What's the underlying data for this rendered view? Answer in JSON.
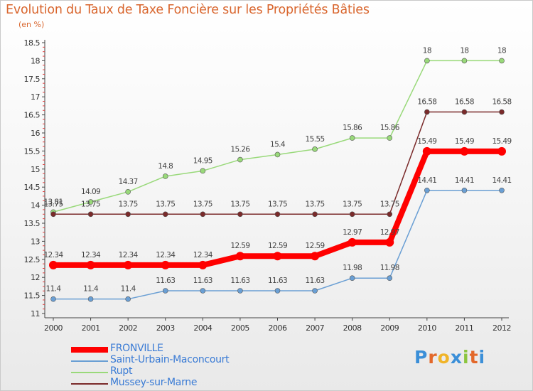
{
  "title": "Evolution du Taux de Taxe Foncière sur les Propriétés Bâties",
  "subtitle": "(en %)",
  "brand": {
    "letters": [
      "P",
      "r",
      "o",
      "x",
      "i",
      "t",
      "i"
    ],
    "colors": [
      "#3b8fd8",
      "#e3682a",
      "#f0b428",
      "#3b8fd8",
      "#8bc53f",
      "#e3682a",
      "#3b8fd8"
    ]
  },
  "chart_data": {
    "type": "line",
    "title": "Evolution du Taux de Taxe Foncière sur les Propriétés Bâties",
    "ylabel": "(en %)",
    "xlabel": "",
    "x": [
      "2000",
      "2001",
      "2002",
      "2003",
      "2004",
      "2005",
      "2006",
      "2007",
      "2008",
      "2009",
      "2010",
      "2011",
      "2012"
    ],
    "ylim": [
      11,
      18.5
    ],
    "yticks": [
      "11",
      "11.5",
      "12",
      "12.5",
      "13",
      "13.5",
      "14",
      "14.5",
      "15",
      "15.5",
      "16",
      "16.5",
      "17",
      "17.5",
      "18",
      "18.5"
    ],
    "grid": false,
    "legend_position": "bottom-left",
    "series": [
      {
        "name": "FRONVILLE",
        "color": "#ff0000",
        "values": [
          12.34,
          12.34,
          12.34,
          12.34,
          12.34,
          12.59,
          12.59,
          12.59,
          12.97,
          12.97,
          15.49,
          15.49,
          15.49
        ],
        "labels": [
          "12.34",
          "12.34",
          "12.34",
          "12.34",
          "12.34",
          "12.59",
          "12.59",
          "12.59",
          "12.97",
          "12.97",
          "15.49",
          "15.49",
          "15.49"
        ]
      },
      {
        "name": "Saint-Urbain-Maconcourt",
        "color": "#6a9fd4",
        "values": [
          11.4,
          11.4,
          11.4,
          11.63,
          11.63,
          11.63,
          11.63,
          11.63,
          11.98,
          11.98,
          14.41,
          14.41,
          14.41
        ],
        "labels": [
          "11.4",
          "11.4",
          "11.4",
          "11.63",
          "11.63",
          "11.63",
          "11.63",
          "11.63",
          "11.98",
          "11.98",
          "14.41",
          "14.41",
          "14.41"
        ]
      },
      {
        "name": "Rupt",
        "color": "#99d97a",
        "values": [
          13.81,
          14.09,
          14.37,
          14.8,
          14.95,
          15.26,
          15.4,
          15.55,
          15.86,
          15.86,
          18,
          18,
          18
        ],
        "labels": [
          "13.81",
          "14.09",
          "14.37",
          "14.8",
          "14.95",
          "15.26",
          "15.4",
          "15.55",
          "15.86",
          "15.86",
          "18",
          "18",
          "18"
        ]
      },
      {
        "name": "Mussey-sur-Marne",
        "color": "#7a2a2a",
        "values": [
          13.75,
          13.75,
          13.75,
          13.75,
          13.75,
          13.75,
          13.75,
          13.75,
          13.75,
          13.75,
          16.58,
          16.58,
          16.58
        ],
        "labels": [
          "13.75",
          "13.75",
          "13.75",
          "13.75",
          "13.75",
          "13.75",
          "13.75",
          "13.75",
          "13.75",
          "13.75",
          "16.58",
          "16.58",
          "16.58"
        ]
      }
    ]
  }
}
